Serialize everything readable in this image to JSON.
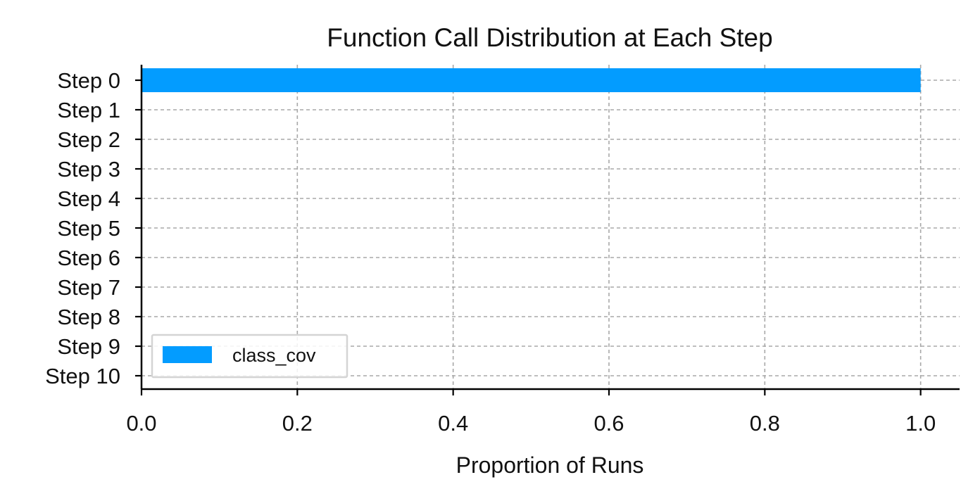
{
  "chart_data": {
    "type": "bar",
    "orientation": "horizontal",
    "title": "Function Call Distribution at Each Step",
    "xlabel": "Proportion of Runs",
    "ylabel": "",
    "categories": [
      "Step 0",
      "Step 1",
      "Step 2",
      "Step 3",
      "Step 4",
      "Step 5",
      "Step 6",
      "Step 7",
      "Step 8",
      "Step 9",
      "Step 10"
    ],
    "series": [
      {
        "name": "class_cov",
        "color": "#039cff",
        "values": [
          1.0,
          0,
          0,
          0,
          0,
          0,
          0,
          0,
          0,
          0,
          0
        ]
      }
    ],
    "xlim": [
      0,
      1.05
    ],
    "xticks": [
      0.0,
      0.2,
      0.4,
      0.6,
      0.8,
      1.0
    ],
    "xtick_labels": [
      "0.0",
      "0.2",
      "0.4",
      "0.6",
      "0.8",
      "1.0"
    ],
    "grid": true,
    "legend_position": "lower-left"
  }
}
